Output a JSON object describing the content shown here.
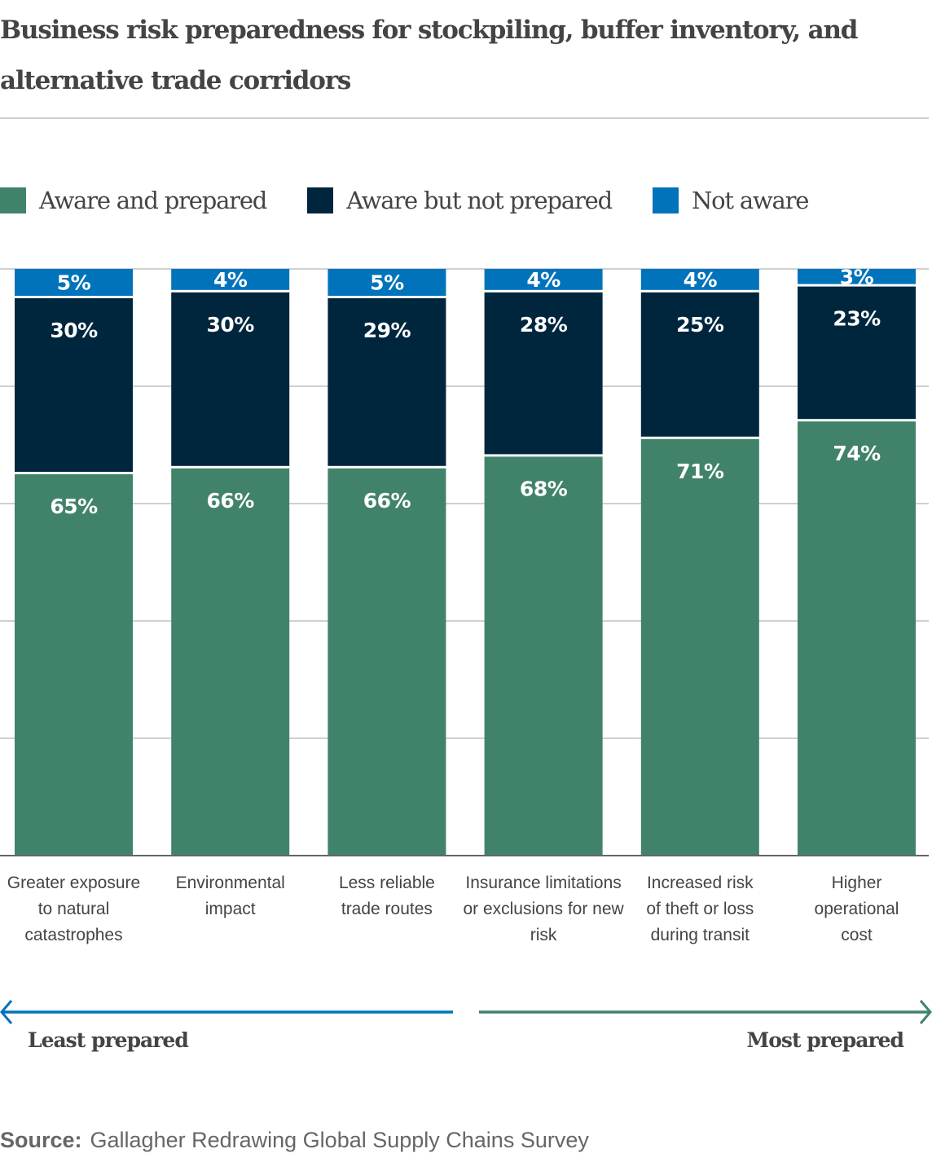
{
  "chart_data": {
    "type": "bar",
    "stacked": true,
    "title": "Business risk preparedness for stockpiling, buffer inventory, and alternative trade corridors",
    "xlabel": "",
    "ylabel": "",
    "ylim": [
      0,
      100
    ],
    "grid": true,
    "gridlines": [
      0,
      20,
      40,
      60,
      80,
      100
    ],
    "legend_position": "top-left",
    "categories": [
      [
        "Greater exposure",
        "to natural",
        "catastrophes"
      ],
      [
        "Environmental",
        "impact"
      ],
      [
        "Less reliable",
        "trade routes"
      ],
      [
        "Insurance limitations",
        "or exclusions for new",
        "risk"
      ],
      [
        "Increased risk",
        "of theft or loss",
        "during transit"
      ],
      [
        "Higher",
        "operational",
        "cost"
      ]
    ],
    "series": [
      {
        "name": "Aware and prepared",
        "color": "#41836a",
        "values": [
          65,
          66,
          66,
          68,
          71,
          74
        ]
      },
      {
        "name": "Aware but not prepared",
        "color": "#00263e",
        "values": [
          30,
          30,
          29,
          28,
          25,
          23
        ]
      },
      {
        "name": "Not aware",
        "color": "#0073bb",
        "values": [
          5,
          4,
          5,
          4,
          4,
          3
        ]
      }
    ],
    "value_suffix": "%",
    "annotations": {
      "left_arrow": {
        "label": "Least prepared",
        "color": "#0073bb"
      },
      "right_arrow": {
        "label": "Most prepared",
        "color": "#41836a"
      }
    }
  },
  "header": {
    "title_line1": "Business risk preparedness for stockpiling, buffer inventory, and",
    "title_line2": "alternative trade corridors"
  },
  "legend": [
    {
      "label": "Aware and prepared",
      "color": "#41836a"
    },
    {
      "label": "Aware but not prepared",
      "color": "#00263e"
    },
    {
      "label": "Not aware",
      "color": "#0073bb"
    }
  ],
  "footer": {
    "source_label": "Source:",
    "source_text": "Gallagher Redrawing Global Supply Chains Survey"
  },
  "colors": {
    "grid": "#d0d0d0",
    "axis": "#666666",
    "text": "#444444"
  }
}
